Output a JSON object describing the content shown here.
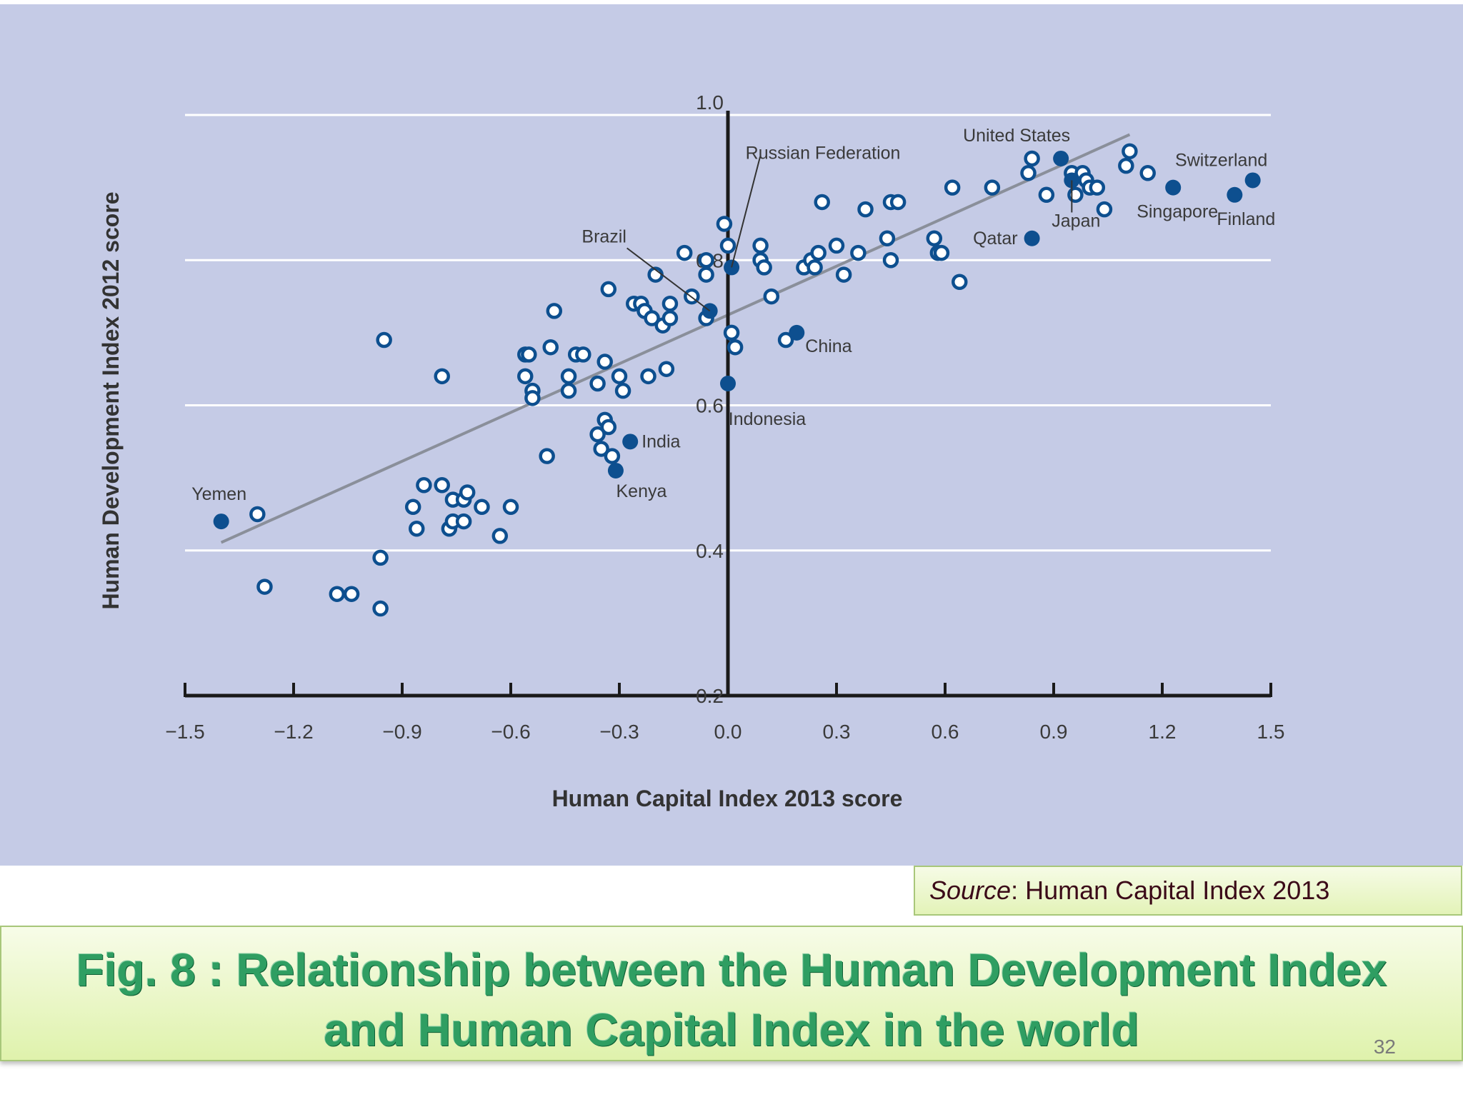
{
  "slide": {
    "source_prefix": "Source",
    "source_text": ": Human Capital Index 2013",
    "title": "Fig. 8 : Relationship between the Human Development Index and Human Capital Index in the world",
    "page_number": "32"
  },
  "colors": {
    "panel_bg": "#c5cbe6",
    "point_hollow_stroke": "#0d4f8f",
    "point_filled": "#0d4f8f",
    "trend_line": "#8a8f9a",
    "gridline": "#ffffff",
    "axis": "#1a1a1a"
  },
  "chart_data": {
    "type": "scatter",
    "title": "",
    "xlabel": "Human Capital Index 2013 score",
    "ylabel": "Human Development Index 2012 score",
    "xlim": [
      -1.5,
      1.5
    ],
    "ylim": [
      0.2,
      1.0
    ],
    "xticks": [
      "-1.5",
      "-1.2",
      "-0.9",
      "-0.6",
      "-0.3",
      "0.0",
      "0.3",
      "0.6",
      "0.9",
      "1.2",
      "1.5"
    ],
    "xtick_values": [
      -1.5,
      -1.2,
      -0.9,
      -0.6,
      -0.3,
      0.0,
      0.3,
      0.6,
      0.9,
      1.2,
      1.5
    ],
    "yticks": [
      "0.2",
      "0.4",
      "0.6",
      "0.8",
      "1.0"
    ],
    "ytick_values": [
      0.2,
      0.4,
      0.6,
      0.8,
      1.0
    ],
    "grid": true,
    "trend_line": {
      "x": [
        -1.4,
        1.11
      ],
      "y": [
        0.411,
        0.973
      ]
    },
    "labeled_points": [
      {
        "name": "Yemen",
        "x": -1.4,
        "y": 0.44
      },
      {
        "name": "Kenya",
        "x": -0.31,
        "y": 0.51
      },
      {
        "name": "India",
        "x": -0.27,
        "y": 0.55
      },
      {
        "name": "Brazil",
        "x": -0.05,
        "y": 0.73
      },
      {
        "name": "Indonesia",
        "x": 0.0,
        "y": 0.63
      },
      {
        "name": "Russian Federation",
        "x": 0.01,
        "y": 0.79
      },
      {
        "name": "China",
        "x": 0.19,
        "y": 0.7
      },
      {
        "name": "Qatar",
        "x": 0.84,
        "y": 0.83
      },
      {
        "name": "United States",
        "x": 0.92,
        "y": 0.94
      },
      {
        "name": "Japan",
        "x": 0.95,
        "y": 0.91
      },
      {
        "name": "Singapore",
        "x": 1.23,
        "y": 0.9
      },
      {
        "name": "Finland",
        "x": 1.4,
        "y": 0.89
      },
      {
        "name": "Switzerland",
        "x": 1.45,
        "y": 0.91
      }
    ],
    "other_points": {
      "x": [
        -1.3,
        -1.28,
        -1.08,
        -1.04,
        -0.96,
        -0.96,
        -0.95,
        -0.87,
        -0.86,
        -0.84,
        -0.79,
        -0.79,
        -0.77,
        -0.76,
        -0.76,
        -0.73,
        -0.73,
        -0.72,
        -0.68,
        -0.63,
        -0.6,
        -0.56,
        -0.56,
        -0.55,
        -0.54,
        -0.54,
        -0.5,
        -0.49,
        -0.48,
        -0.44,
        -0.44,
        -0.42,
        -0.4,
        -0.36,
        -0.36,
        -0.35,
        -0.34,
        -0.34,
        -0.33,
        -0.33,
        -0.32,
        -0.3,
        -0.29,
        -0.26,
        -0.24,
        -0.23,
        -0.22,
        -0.21,
        -0.2,
        -0.18,
        -0.17,
        -0.16,
        -0.16,
        -0.12,
        -0.1,
        -0.06,
        -0.06,
        -0.06,
        -0.01,
        0.0,
        0.01,
        0.02,
        0.09,
        0.09,
        0.1,
        0.12,
        0.16,
        0.21,
        0.23,
        0.24,
        0.25,
        0.26,
        0.3,
        0.32,
        0.36,
        0.38,
        0.44,
        0.45,
        0.45,
        0.47,
        0.57,
        0.58,
        0.59,
        0.62,
        0.64,
        0.73,
        0.83,
        0.84,
        0.88,
        0.95,
        0.96,
        0.98,
        0.99,
        1.0,
        1.02,
        1.04,
        1.1,
        1.11,
        1.16
      ],
      "y": [
        0.45,
        0.35,
        0.34,
        0.34,
        0.32,
        0.39,
        0.69,
        0.46,
        0.43,
        0.49,
        0.49,
        0.64,
        0.43,
        0.44,
        0.47,
        0.44,
        0.47,
        0.48,
        0.46,
        0.42,
        0.46,
        0.64,
        0.67,
        0.67,
        0.62,
        0.61,
        0.53,
        0.68,
        0.73,
        0.64,
        0.62,
        0.67,
        0.67,
        0.63,
        0.56,
        0.54,
        0.58,
        0.66,
        0.57,
        0.76,
        0.53,
        0.64,
        0.62,
        0.74,
        0.74,
        0.73,
        0.64,
        0.72,
        0.78,
        0.71,
        0.65,
        0.72,
        0.74,
        0.81,
        0.75,
        0.8,
        0.78,
        0.72,
        0.85,
        0.82,
        0.7,
        0.68,
        0.82,
        0.8,
        0.79,
        0.75,
        0.69,
        0.79,
        0.8,
        0.79,
        0.81,
        0.88,
        0.82,
        0.78,
        0.81,
        0.87,
        0.83,
        0.88,
        0.8,
        0.88,
        0.83,
        0.81,
        0.81,
        0.9,
        0.77,
        0.9,
        0.92,
        0.94,
        0.89,
        0.92,
        0.89,
        0.92,
        0.91,
        0.9,
        0.9,
        0.87,
        0.93,
        0.95,
        0.92
      ]
    }
  }
}
